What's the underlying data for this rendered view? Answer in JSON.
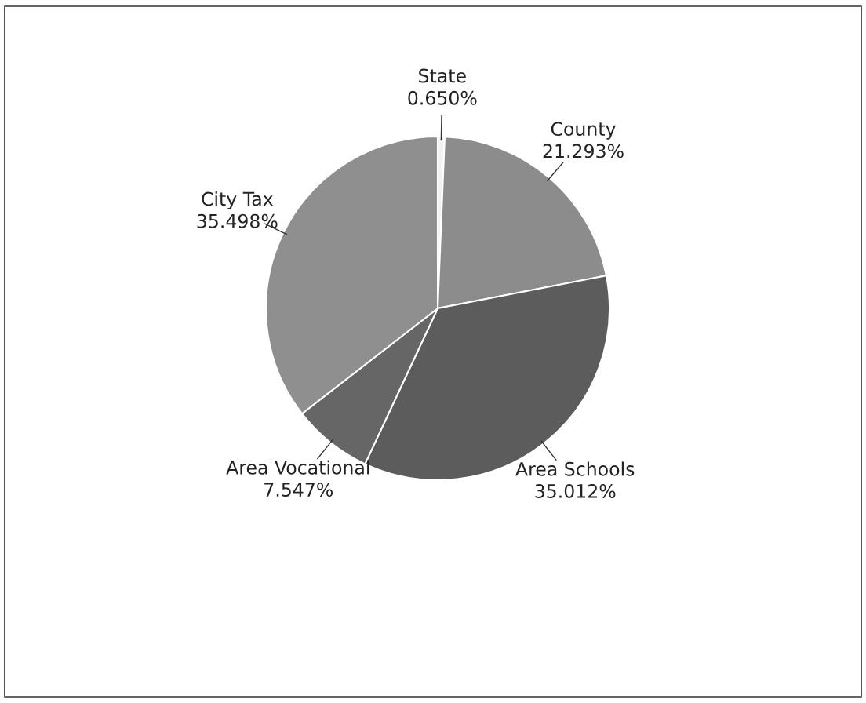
{
  "chart_data": {
    "type": "pie",
    "categories": [
      "State",
      "County",
      "Area Schools",
      "Area Vocational",
      "City Tax"
    ],
    "values": [
      0.65,
      21.293,
      35.012,
      7.547,
      35.498
    ],
    "value_labels": [
      "0.650%",
      "21.293%",
      "35.012%",
      "7.547%",
      "35.498%"
    ],
    "colors": [
      "#f2f2f2",
      "#8c8c8c",
      "#5c5c5c",
      "#666666",
      "#8f8f8f"
    ],
    "legend": false
  }
}
